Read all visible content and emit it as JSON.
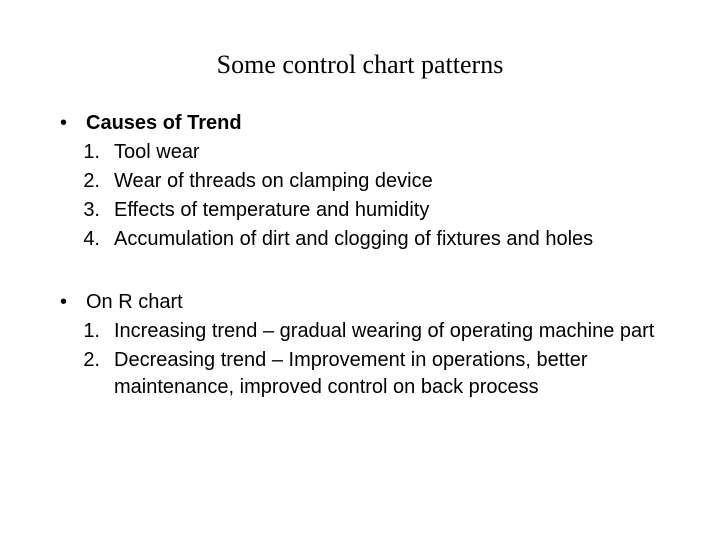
{
  "title": "Some control chart patterns",
  "section1": {
    "bullet": "Causes of Trend",
    "items": [
      {
        "num": "1.",
        "text": "Tool wear"
      },
      {
        "num": "2.",
        "text": "Wear of threads on clamping device"
      },
      {
        "num": "3.",
        "text": "Effects of temperature and humidity"
      },
      {
        "num": "4.",
        "text": "Accumulation of dirt and clogging of fixtures and holes"
      }
    ]
  },
  "section2": {
    "bullet": "On R chart",
    "items": [
      {
        "num": "1.",
        "text": "Increasing trend – gradual wearing of operating machine part"
      },
      {
        "num": "2.",
        "text": "Decreasing trend – Improvement in operations, better maintenance, improved control on back process"
      }
    ]
  },
  "style": {
    "background_color": "#ffffff",
    "text_color": "#000000",
    "title_fontsize": 26,
    "body_fontsize": 20,
    "title_font": "serif",
    "body_font": "sans-serif"
  }
}
